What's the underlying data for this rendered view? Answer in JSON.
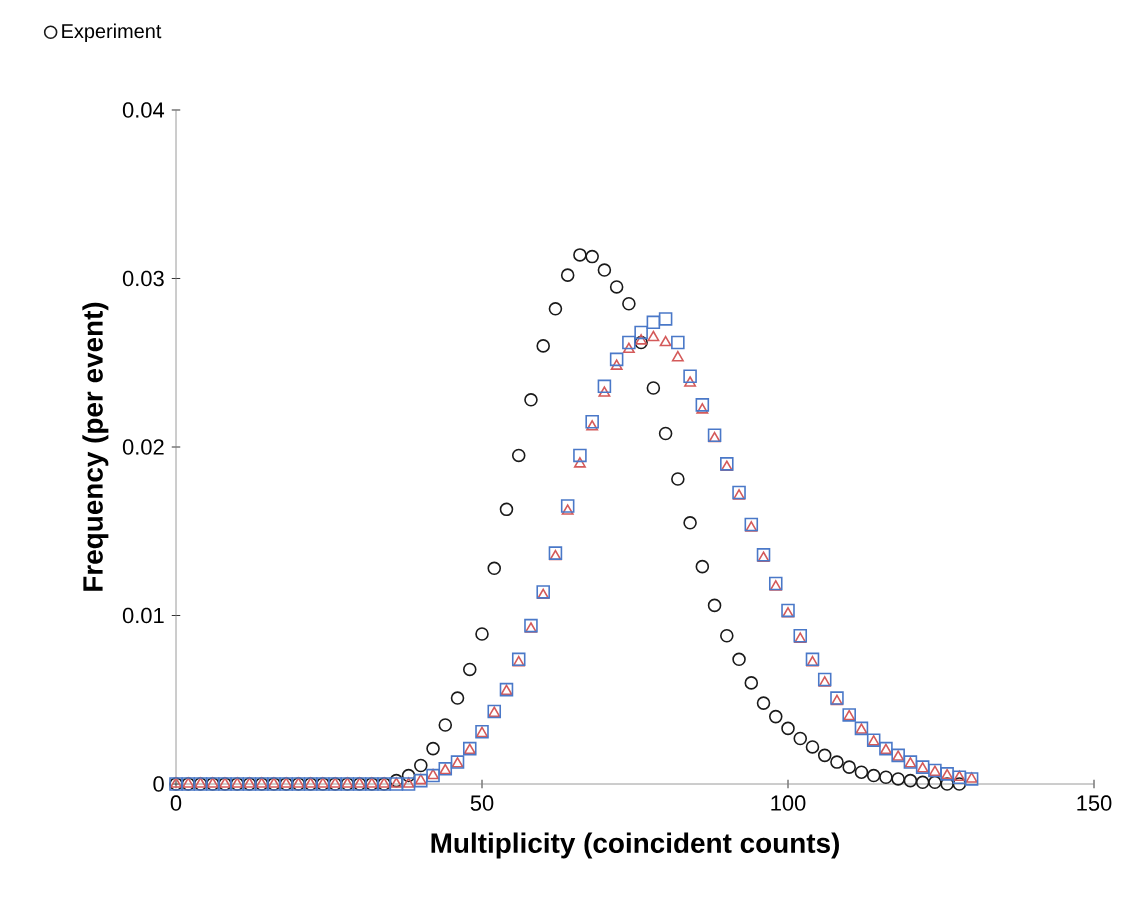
{
  "chart_data": {
    "type": "scatter",
    "xlabel": "Multiplicity (coincident counts)",
    "ylabel": "Frequency (per event)",
    "xlim": [
      0,
      150
    ],
    "ylim": [
      0,
      0.04
    ],
    "xticks": [
      0,
      50,
      100,
      150
    ],
    "yticks": [
      0,
      0.01,
      0.02,
      0.03,
      0.04
    ],
    "grid": false,
    "legend": "top left",
    "series": [
      {
        "name": "Experiment",
        "color": "#1a1a1a",
        "marker": "circle",
        "x": [
          0,
          2,
          4,
          6,
          8,
          10,
          12,
          14,
          16,
          18,
          20,
          22,
          24,
          26,
          28,
          30,
          32,
          34,
          36,
          38,
          40,
          42,
          44,
          46,
          48,
          50,
          52,
          54,
          56,
          58,
          60,
          62,
          64,
          66,
          68,
          70,
          72,
          74,
          76,
          78,
          80,
          82,
          84,
          86,
          88,
          90,
          92,
          94,
          96,
          98,
          100,
          102,
          104,
          106,
          108,
          110,
          112,
          114,
          116,
          118,
          120,
          122,
          124,
          126,
          128
        ],
        "values": [
          0,
          0,
          0,
          0,
          0,
          0,
          0,
          0,
          0,
          0,
          0,
          0,
          0,
          0,
          0,
          0,
          0,
          0,
          0.0002,
          0.0005,
          0.0011,
          0.0021,
          0.0035,
          0.0051,
          0.0068,
          0.0089,
          0.0128,
          0.0163,
          0.0195,
          0.0228,
          0.026,
          0.0282,
          0.0302,
          0.0314,
          0.0313,
          0.0305,
          0.0295,
          0.0285,
          0.0262,
          0.0235,
          0.0208,
          0.0181,
          0.0155,
          0.0129,
          0.0106,
          0.0088,
          0.0074,
          0.006,
          0.0048,
          0.004,
          0.0033,
          0.0027,
          0.0022,
          0.0017,
          0.0013,
          0.001,
          0.0007,
          0.0005,
          0.0004,
          0.0003,
          0.0002,
          0.0001,
          0.0001,
          0,
          0
        ]
      },
      {
        "color": "#d45a5a",
        "marker": "triangle",
        "x": [
          0,
          2,
          4,
          6,
          8,
          10,
          12,
          14,
          16,
          18,
          20,
          22,
          24,
          26,
          28,
          30,
          32,
          34,
          36,
          38,
          40,
          42,
          44,
          46,
          48,
          50,
          52,
          54,
          56,
          58,
          60,
          62,
          64,
          66,
          68,
          70,
          72,
          74,
          76,
          78,
          80,
          82,
          84,
          86,
          88,
          90,
          92,
          94,
          96,
          98,
          100,
          102,
          104,
          106,
          108,
          110,
          112,
          114,
          116,
          118,
          120,
          122,
          124,
          126,
          128,
          130
        ],
        "values": [
          0,
          0,
          0,
          0,
          0,
          0,
          0,
          0,
          0,
          0,
          0,
          0,
          0,
          0,
          0,
          0,
          0,
          0,
          0,
          0,
          0.0002,
          0.0005,
          0.0008,
          0.0012,
          0.002,
          0.003,
          0.0042,
          0.0055,
          0.0072,
          0.0092,
          0.0112,
          0.0135,
          0.0162,
          0.019,
          0.0212,
          0.0232,
          0.0248,
          0.0258,
          0.0263,
          0.0265,
          0.0262,
          0.0253,
          0.0238,
          0.0222,
          0.0205,
          0.0188,
          0.0171,
          0.0152,
          0.0134,
          0.0117,
          0.0101,
          0.0086,
          0.0072,
          0.006,
          0.0049,
          0.004,
          0.0032,
          0.0025,
          0.002,
          0.0016,
          0.0012,
          0.0009,
          0.0007,
          0.0005,
          0.0004,
          0.0003
        ]
      },
      {
        "color": "#4a78c8",
        "marker": "square",
        "x": [
          0,
          2,
          4,
          6,
          8,
          10,
          12,
          14,
          16,
          18,
          20,
          22,
          24,
          26,
          28,
          30,
          32,
          34,
          36,
          38,
          40,
          42,
          44,
          46,
          48,
          50,
          52,
          54,
          56,
          58,
          60,
          62,
          64,
          66,
          68,
          70,
          72,
          74,
          76,
          78,
          80,
          82,
          84,
          86,
          88,
          90,
          92,
          94,
          96,
          98,
          100,
          102,
          104,
          106,
          108,
          110,
          112,
          114,
          116,
          118,
          120,
          122,
          124,
          126,
          128,
          130
        ],
        "values": [
          0,
          0,
          0,
          0,
          0,
          0,
          0,
          0,
          0,
          0,
          0,
          0,
          0,
          0,
          0,
          0,
          0,
          0,
          0,
          0,
          0.0002,
          0.0005,
          0.0009,
          0.0013,
          0.0021,
          0.0031,
          0.0043,
          0.0056,
          0.0074,
          0.0094,
          0.0114,
          0.0137,
          0.0165,
          0.0195,
          0.0215,
          0.0236,
          0.0252,
          0.0262,
          0.0268,
          0.0274,
          0.0276,
          0.0262,
          0.0242,
          0.0225,
          0.0207,
          0.019,
          0.0173,
          0.0154,
          0.0136,
          0.0119,
          0.0103,
          0.0088,
          0.0074,
          0.0062,
          0.0051,
          0.0041,
          0.0033,
          0.0026,
          0.0021,
          0.0017,
          0.0013,
          0.001,
          0.0008,
          0.0006,
          0.0004,
          0.0003
        ]
      }
    ]
  }
}
